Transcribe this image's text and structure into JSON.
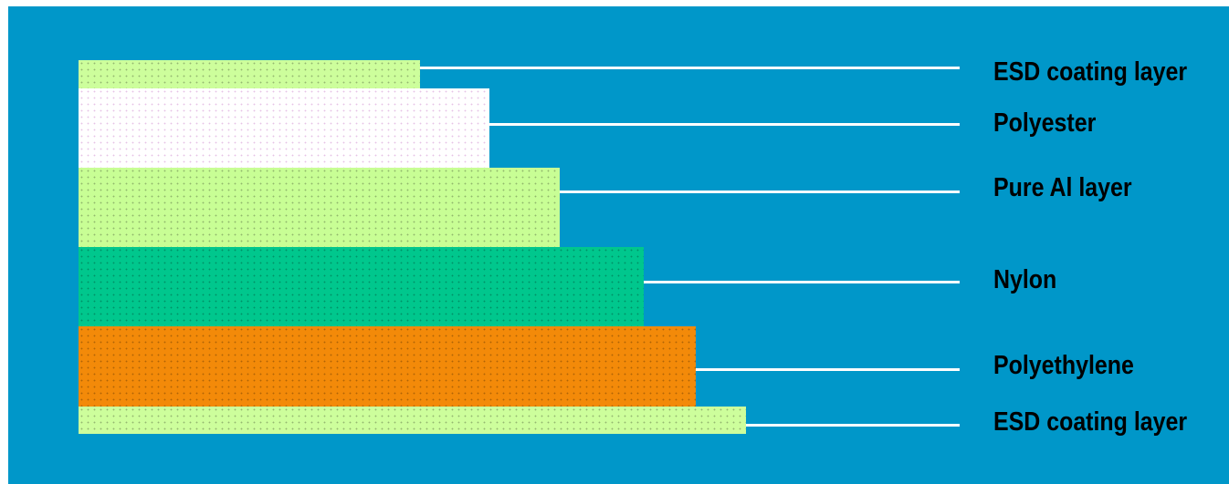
{
  "layers": [
    {
      "id": "esd-top",
      "label": "ESD coating layer",
      "color": "#cdfe9c"
    },
    {
      "id": "polyester",
      "label": "Polyester",
      "color": "#ffffff"
    },
    {
      "id": "pure-al",
      "label": "Pure Al layer",
      "color": "#c8fe95"
    },
    {
      "id": "nylon",
      "label": "Nylon",
      "color": "#00c78d"
    },
    {
      "id": "polyethylene",
      "label": "Polyethylene",
      "color": "#f38a09"
    },
    {
      "id": "esd-bottom",
      "label": "ESD coating layer",
      "color": "#cdfe9c"
    }
  ]
}
